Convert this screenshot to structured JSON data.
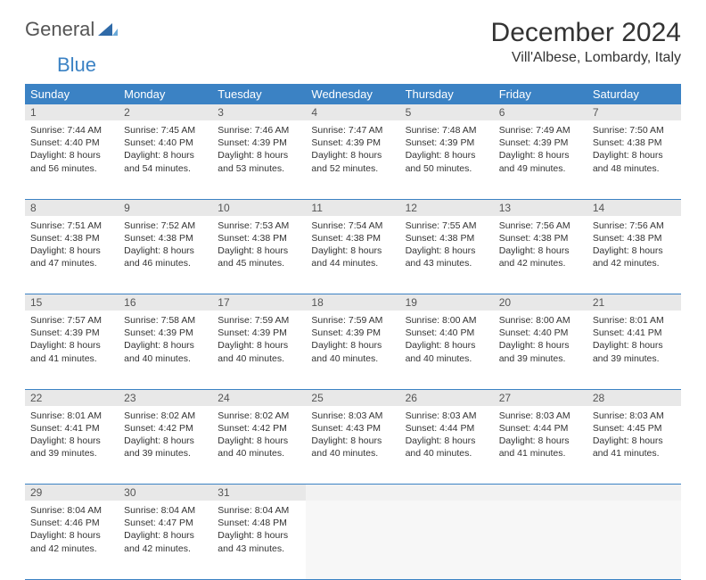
{
  "logo": {
    "text1": "General",
    "text2": "Blue"
  },
  "title": "December 2024",
  "location": "Vill'Albese, Lombardy, Italy",
  "colors": {
    "header_bg": "#3b82c4",
    "header_text": "#ffffff",
    "daynum_bg": "#e8e8e8",
    "border": "#3b82c4",
    "text": "#333333"
  },
  "day_headers": [
    "Sunday",
    "Monday",
    "Tuesday",
    "Wednesday",
    "Thursday",
    "Friday",
    "Saturday"
  ],
  "weeks": [
    [
      {
        "n": "1",
        "sr": "Sunrise: 7:44 AM",
        "ss": "Sunset: 4:40 PM",
        "dl": "Daylight: 8 hours and 56 minutes."
      },
      {
        "n": "2",
        "sr": "Sunrise: 7:45 AM",
        "ss": "Sunset: 4:40 PM",
        "dl": "Daylight: 8 hours and 54 minutes."
      },
      {
        "n": "3",
        "sr": "Sunrise: 7:46 AM",
        "ss": "Sunset: 4:39 PM",
        "dl": "Daylight: 8 hours and 53 minutes."
      },
      {
        "n": "4",
        "sr": "Sunrise: 7:47 AM",
        "ss": "Sunset: 4:39 PM",
        "dl": "Daylight: 8 hours and 52 minutes."
      },
      {
        "n": "5",
        "sr": "Sunrise: 7:48 AM",
        "ss": "Sunset: 4:39 PM",
        "dl": "Daylight: 8 hours and 50 minutes."
      },
      {
        "n": "6",
        "sr": "Sunrise: 7:49 AM",
        "ss": "Sunset: 4:39 PM",
        "dl": "Daylight: 8 hours and 49 minutes."
      },
      {
        "n": "7",
        "sr": "Sunrise: 7:50 AM",
        "ss": "Sunset: 4:38 PM",
        "dl": "Daylight: 8 hours and 48 minutes."
      }
    ],
    [
      {
        "n": "8",
        "sr": "Sunrise: 7:51 AM",
        "ss": "Sunset: 4:38 PM",
        "dl": "Daylight: 8 hours and 47 minutes."
      },
      {
        "n": "9",
        "sr": "Sunrise: 7:52 AM",
        "ss": "Sunset: 4:38 PM",
        "dl": "Daylight: 8 hours and 46 minutes."
      },
      {
        "n": "10",
        "sr": "Sunrise: 7:53 AM",
        "ss": "Sunset: 4:38 PM",
        "dl": "Daylight: 8 hours and 45 minutes."
      },
      {
        "n": "11",
        "sr": "Sunrise: 7:54 AM",
        "ss": "Sunset: 4:38 PM",
        "dl": "Daylight: 8 hours and 44 minutes."
      },
      {
        "n": "12",
        "sr": "Sunrise: 7:55 AM",
        "ss": "Sunset: 4:38 PM",
        "dl": "Daylight: 8 hours and 43 minutes."
      },
      {
        "n": "13",
        "sr": "Sunrise: 7:56 AM",
        "ss": "Sunset: 4:38 PM",
        "dl": "Daylight: 8 hours and 42 minutes."
      },
      {
        "n": "14",
        "sr": "Sunrise: 7:56 AM",
        "ss": "Sunset: 4:38 PM",
        "dl": "Daylight: 8 hours and 42 minutes."
      }
    ],
    [
      {
        "n": "15",
        "sr": "Sunrise: 7:57 AM",
        "ss": "Sunset: 4:39 PM",
        "dl": "Daylight: 8 hours and 41 minutes."
      },
      {
        "n": "16",
        "sr": "Sunrise: 7:58 AM",
        "ss": "Sunset: 4:39 PM",
        "dl": "Daylight: 8 hours and 40 minutes."
      },
      {
        "n": "17",
        "sr": "Sunrise: 7:59 AM",
        "ss": "Sunset: 4:39 PM",
        "dl": "Daylight: 8 hours and 40 minutes."
      },
      {
        "n": "18",
        "sr": "Sunrise: 7:59 AM",
        "ss": "Sunset: 4:39 PM",
        "dl": "Daylight: 8 hours and 40 minutes."
      },
      {
        "n": "19",
        "sr": "Sunrise: 8:00 AM",
        "ss": "Sunset: 4:40 PM",
        "dl": "Daylight: 8 hours and 40 minutes."
      },
      {
        "n": "20",
        "sr": "Sunrise: 8:00 AM",
        "ss": "Sunset: 4:40 PM",
        "dl": "Daylight: 8 hours and 39 minutes."
      },
      {
        "n": "21",
        "sr": "Sunrise: 8:01 AM",
        "ss": "Sunset: 4:41 PM",
        "dl": "Daylight: 8 hours and 39 minutes."
      }
    ],
    [
      {
        "n": "22",
        "sr": "Sunrise: 8:01 AM",
        "ss": "Sunset: 4:41 PM",
        "dl": "Daylight: 8 hours and 39 minutes."
      },
      {
        "n": "23",
        "sr": "Sunrise: 8:02 AM",
        "ss": "Sunset: 4:42 PM",
        "dl": "Daylight: 8 hours and 39 minutes."
      },
      {
        "n": "24",
        "sr": "Sunrise: 8:02 AM",
        "ss": "Sunset: 4:42 PM",
        "dl": "Daylight: 8 hours and 40 minutes."
      },
      {
        "n": "25",
        "sr": "Sunrise: 8:03 AM",
        "ss": "Sunset: 4:43 PM",
        "dl": "Daylight: 8 hours and 40 minutes."
      },
      {
        "n": "26",
        "sr": "Sunrise: 8:03 AM",
        "ss": "Sunset: 4:44 PM",
        "dl": "Daylight: 8 hours and 40 minutes."
      },
      {
        "n": "27",
        "sr": "Sunrise: 8:03 AM",
        "ss": "Sunset: 4:44 PM",
        "dl": "Daylight: 8 hours and 41 minutes."
      },
      {
        "n": "28",
        "sr": "Sunrise: 8:03 AM",
        "ss": "Sunset: 4:45 PM",
        "dl": "Daylight: 8 hours and 41 minutes."
      }
    ],
    [
      {
        "n": "29",
        "sr": "Sunrise: 8:04 AM",
        "ss": "Sunset: 4:46 PM",
        "dl": "Daylight: 8 hours and 42 minutes."
      },
      {
        "n": "30",
        "sr": "Sunrise: 8:04 AM",
        "ss": "Sunset: 4:47 PM",
        "dl": "Daylight: 8 hours and 42 minutes."
      },
      {
        "n": "31",
        "sr": "Sunrise: 8:04 AM",
        "ss": "Sunset: 4:48 PM",
        "dl": "Daylight: 8 hours and 43 minutes."
      },
      null,
      null,
      null,
      null
    ]
  ]
}
